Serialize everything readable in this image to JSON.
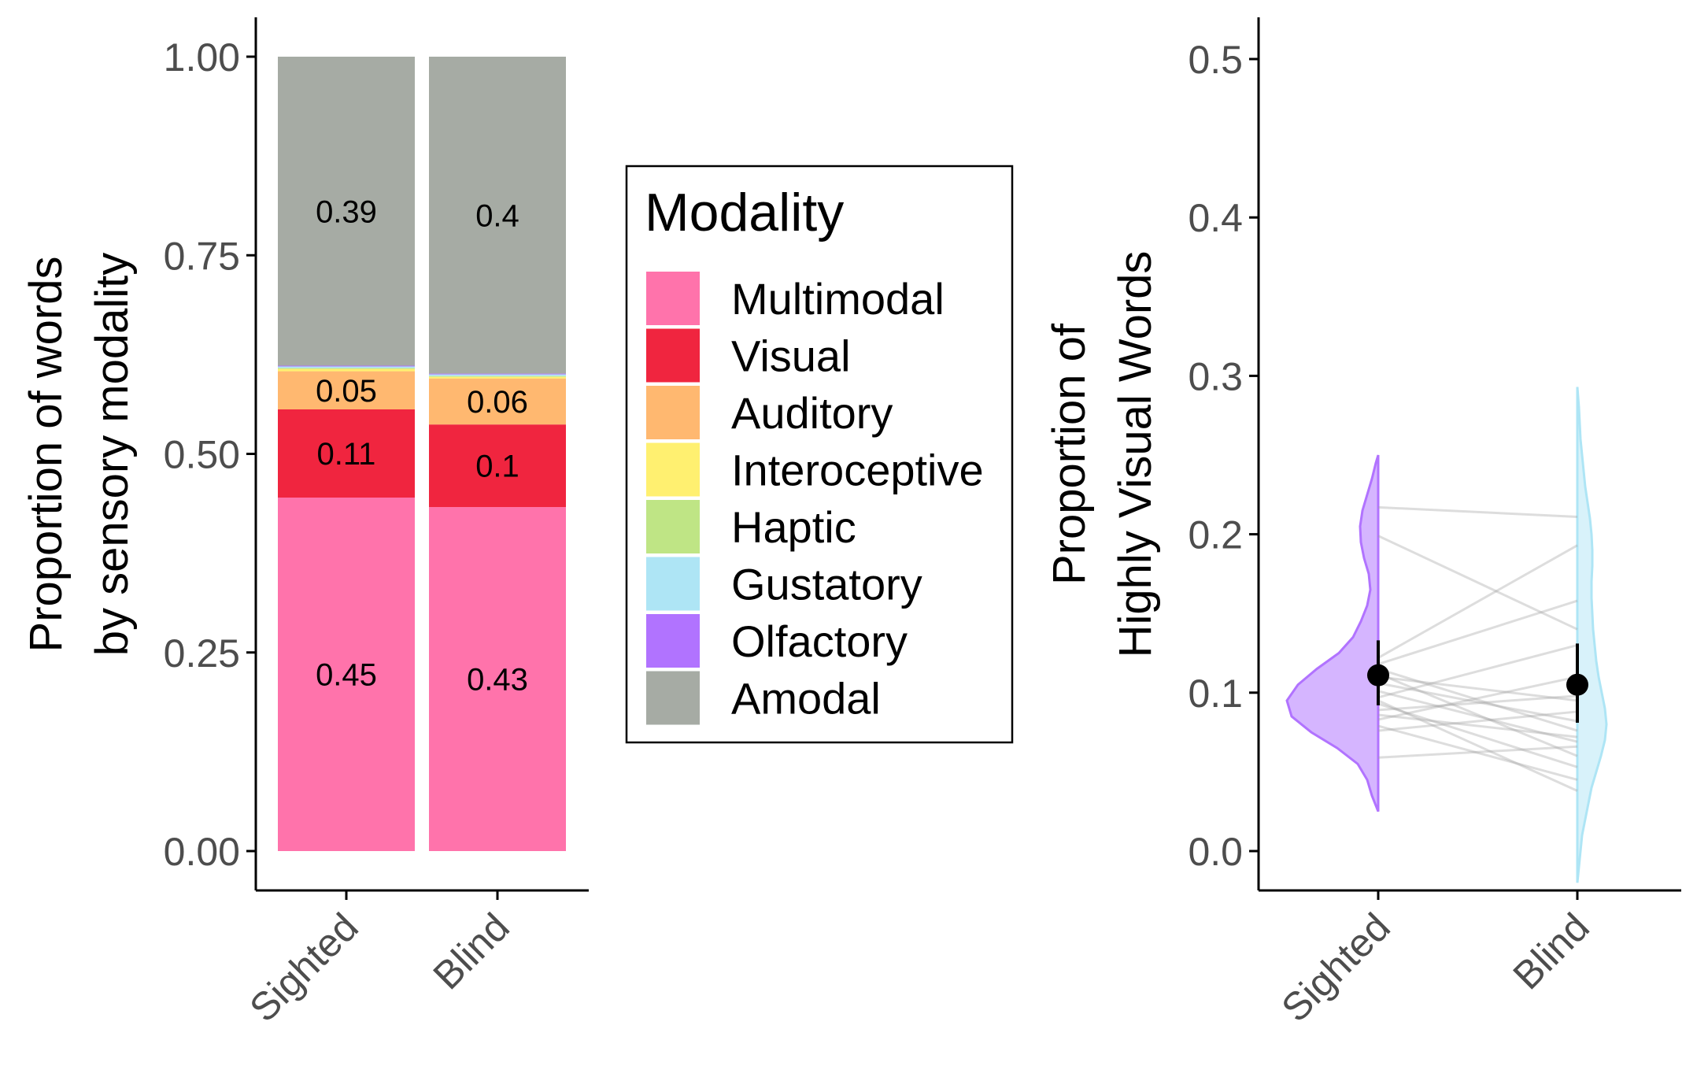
{
  "chart_data": [
    {
      "type": "bar",
      "stacked": true,
      "categories": [
        "Sighted",
        "Blind"
      ],
      "ylabel": [
        "Proportion of words",
        "by sensory modality"
      ],
      "ylim": [
        0,
        1
      ],
      "yticks": [
        "0.00",
        "0.25",
        "0.50",
        "0.75",
        "1.00"
      ],
      "yticks_values": [
        0,
        0.25,
        0.5,
        0.75,
        1.0
      ],
      "series": [
        {
          "name": "Multimodal",
          "color": "#FF73AB",
          "values": [
            0.445,
            0.433
          ],
          "labels": [
            "0.45",
            "0.43"
          ]
        },
        {
          "name": "Visual",
          "color": "#F0253F",
          "values": [
            0.111,
            0.104
          ],
          "labels": [
            "0.11",
            "0.1"
          ]
        },
        {
          "name": "Auditory",
          "color": "#FFB870",
          "values": [
            0.048,
            0.058
          ],
          "labels": [
            "0.05",
            "0.06"
          ]
        },
        {
          "name": "Interoceptive",
          "color": "#FFF070",
          "values": [
            0.003,
            0.002
          ],
          "labels": [
            "",
            ""
          ]
        },
        {
          "name": "Haptic",
          "color": "#BFE585",
          "values": [
            0.001,
            0.001
          ],
          "labels": [
            "",
            ""
          ]
        },
        {
          "name": "Gustatory",
          "color": "#AEE5F5",
          "values": [
            0.002,
            0.002
          ],
          "labels": [
            "",
            ""
          ]
        },
        {
          "name": "Olfactory",
          "color": "#B173FF",
          "values": [
            0.001,
            0.001
          ],
          "labels": [
            "",
            ""
          ]
        },
        {
          "name": "Amodal",
          "color": "#A6ABA4",
          "values": [
            0.389,
            0.399
          ],
          "labels": [
            "0.39",
            "0.4"
          ]
        }
      ],
      "legend": {
        "title": "Modality",
        "position": "right"
      }
    },
    {
      "type": "violin",
      "categories": [
        "Sighted",
        "Blind"
      ],
      "ylabel": [
        "Proportion of",
        "Highly Visual Words"
      ],
      "ylim": [
        0,
        0.5
      ],
      "yticks": [
        "0.0",
        "0.1",
        "0.2",
        "0.3",
        "0.4",
        "0.5"
      ],
      "yticks_values": [
        0,
        0.1,
        0.2,
        0.3,
        0.4,
        0.5
      ],
      "groups": [
        {
          "name": "Sighted",
          "color": "#B173FF",
          "fill": "#D5B5FF",
          "side": "left",
          "range": [
            0.025,
            0.25
          ],
          "mean": 0.111,
          "ci": [
            0.092,
            0.133
          ]
        },
        {
          "name": "Blind",
          "color": "#AEE5F5",
          "fill": "#D8F2FA",
          "side": "right",
          "range": [
            -0.02,
            0.293
          ],
          "mean": 0.105,
          "ci": [
            0.081,
            0.131
          ]
        }
      ],
      "paired_lines": [
        [
          0.217,
          0.211
        ],
        [
          0.199,
          0.14
        ],
        [
          0.122,
          0.193
        ],
        [
          0.118,
          0.158
        ],
        [
          0.115,
          0.076
        ],
        [
          0.11,
          0.095
        ],
        [
          0.106,
          0.082
        ],
        [
          0.101,
          0.069
        ],
        [
          0.097,
          0.13
        ],
        [
          0.093,
          0.053
        ],
        [
          0.089,
          0.098
        ],
        [
          0.086,
          0.072
        ],
        [
          0.083,
          0.11
        ],
        [
          0.079,
          0.045
        ],
        [
          0.076,
          0.088
        ],
        [
          0.059,
          0.066
        ],
        [
          0.095,
          0.038
        ],
        [
          0.112,
          0.06
        ]
      ]
    }
  ]
}
